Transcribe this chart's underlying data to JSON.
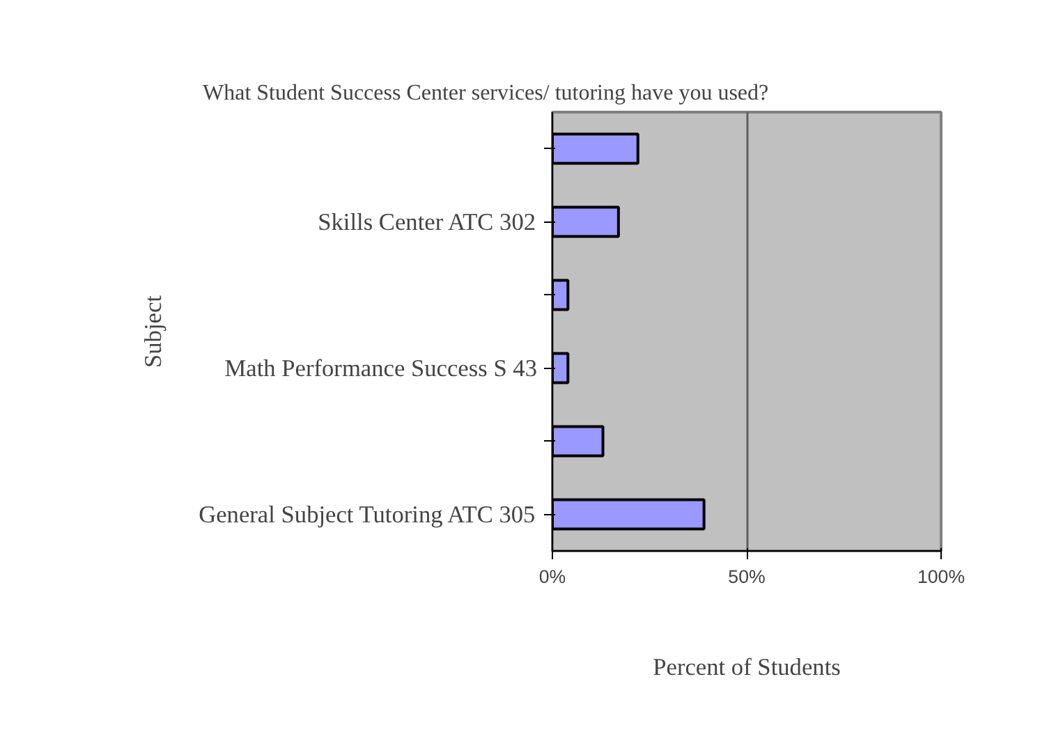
{
  "chart_data": {
    "type": "bar",
    "orientation": "horizontal",
    "title": "What Student Success Center services/ tutoring have you used?",
    "xlabel": "Percent of Students",
    "ylabel": "Subject",
    "categories": [
      null,
      "Skills Center ATC 302",
      null,
      "Math Performance Success S 43",
      null,
      "General Subject Tutoring ATC 305"
    ],
    "values": [
      22,
      17,
      4,
      4,
      13,
      39
    ],
    "color": "#9999ff",
    "xlim": [
      0,
      100
    ],
    "xticks": [
      {
        "value": 0,
        "label": "0%"
      },
      {
        "value": 50,
        "label": "50%"
      },
      {
        "value": 100,
        "label": "100%"
      }
    ],
    "grid": "x"
  }
}
